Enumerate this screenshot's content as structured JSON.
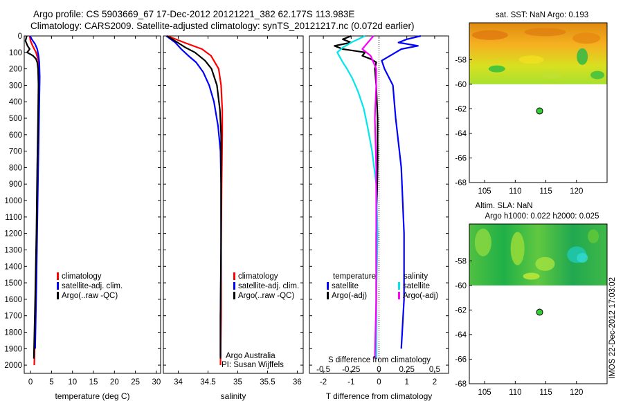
{
  "header": {
    "line1": "Argo profile: CS 5903669_67 17-Dec-2012 20121221_382 62.177S 113.983E",
    "line2": "Climatology: CARS2009. Satellite-adjusted climatology: synTS_20121217.nc (0.072d earlier)"
  },
  "colors": {
    "climatology": "#ff0000",
    "satellite": "#0000ff",
    "argo": "#000000",
    "satellite_salinity": "#00e5ee",
    "argo_salinity": "#ff00ff",
    "map_land_gray": "#ffffff",
    "float_marker": "#33cc33"
  },
  "chart_data": [
    {
      "id": "temperature-profile",
      "type": "line",
      "xlabel": "temperature (deg C)",
      "ylabel": "",
      "xlim": [
        -1.5,
        31
      ],
      "ylim": [
        2050,
        0
      ],
      "x_ticks": [
        0,
        5,
        10,
        15,
        20,
        25,
        30
      ],
      "y_ticks": [
        0,
        100,
        200,
        300,
        400,
        500,
        600,
        700,
        800,
        900,
        1000,
        1100,
        1200,
        1300,
        1400,
        1500,
        1600,
        1700,
        1800,
        1900,
        2000
      ],
      "legend_position": "lower-center",
      "series": [
        {
          "name": "climatology",
          "color_key": "climatology",
          "depth": [
            0,
            30,
            60,
            100,
            150,
            200,
            300,
            500,
            800,
            1200,
            1600,
            2000
          ],
          "values": [
            -0.2,
            0.0,
            0.5,
            1.3,
            1.9,
            2.1,
            2.0,
            1.9,
            1.7,
            1.5,
            1.2,
            0.9
          ]
        },
        {
          "name": "satellite-adj. clim.",
          "color_key": "satellite",
          "depth": [
            0,
            20,
            50,
            80,
            120,
            160,
            250,
            400,
            700,
            1000,
            1500,
            1900
          ],
          "values": [
            -0.1,
            0.3,
            1.1,
            1.6,
            1.9,
            2.1,
            2.2,
            2.1,
            1.9,
            1.7,
            1.4,
            1.1
          ]
        },
        {
          "name": "Argo(..raw -QC)",
          "color_key": "argo",
          "depth": [
            0,
            30,
            60,
            80,
            100,
            120,
            140,
            160,
            200,
            300,
            500,
            800,
            1200,
            1600,
            1960
          ],
          "values": [
            -0.9,
            -1.2,
            -0.7,
            -0.2,
            -0.8,
            0.6,
            1.3,
            1.6,
            1.8,
            1.9,
            1.8,
            1.6,
            1.4,
            1.1,
            0.8
          ]
        }
      ]
    },
    {
      "id": "salinity-profile",
      "type": "line",
      "xlabel": "salinity",
      "ylabel": "",
      "xlim": [
        33.75,
        36.1
      ],
      "ylim": [
        2050,
        0
      ],
      "x_ticks": [
        34,
        34.5,
        35,
        35.5,
        36
      ],
      "legend_position": "lower-right",
      "series": [
        {
          "name": "climatology",
          "color_key": "climatology",
          "depth": [
            0,
            40,
            80,
            120,
            200,
            300,
            450,
            600,
            900,
            1300,
            1700,
            2000
          ],
          "values": [
            33.82,
            34.1,
            34.4,
            34.55,
            34.68,
            34.72,
            34.74,
            34.74,
            34.73,
            34.72,
            34.72,
            34.71
          ]
        },
        {
          "name": "satellite-adj. clim.",
          "color_key": "satellite",
          "depth": [
            0,
            40,
            80,
            120,
            160,
            220,
            300,
            400,
            550,
            700,
            900,
            1300,
            1700,
            1950
          ],
          "values": [
            33.8,
            33.95,
            34.05,
            34.17,
            34.3,
            34.42,
            34.52,
            34.6,
            34.67,
            34.71,
            34.72,
            34.72,
            34.71,
            34.71
          ]
        },
        {
          "name": "Argo(..raw -QC)",
          "color_key": "argo",
          "depth": [
            0,
            40,
            70,
            100,
            150,
            200,
            300,
            450,
            600,
            900,
            1300,
            1700,
            1960
          ],
          "values": [
            33.81,
            33.99,
            34.12,
            34.28,
            34.45,
            34.56,
            34.65,
            34.7,
            34.72,
            34.72,
            34.72,
            34.71,
            34.71
          ]
        }
      ],
      "annotations": [
        "Argo Australia",
        "PI: Susan Wijffels"
      ]
    },
    {
      "id": "difference-profile",
      "type": "line",
      "xlabel": "T difference from climatology",
      "top_axis_label": "S difference from climatology",
      "xlim": [
        -2.5,
        2.5
      ],
      "x_ticks": [
        -2,
        -1,
        0,
        1,
        2
      ],
      "top_ticks": [
        "-0.5",
        "-0.25",
        "0",
        "0.25",
        "0.5"
      ],
      "top_tick_positions": [
        -2,
        -1,
        0,
        1,
        2
      ],
      "ylim": [
        2050,
        0
      ],
      "legend": {
        "temperature_title": "temperature",
        "salinity_title": "salinity",
        "temperature_entries": [
          "satellite",
          "Argo(-adj)"
        ],
        "salinity_entries": [
          "satellite",
          "Argo(-adj)"
        ]
      },
      "series": [
        {
          "name": "satellite",
          "group": "temperature",
          "color_key": "satellite",
          "depth": [
            0,
            20,
            40,
            60,
            80,
            100,
            150,
            200,
            300,
            500,
            800,
            1200,
            1600,
            1900
          ],
          "values": [
            1.5,
            1.0,
            0.7,
            1.4,
            0.8,
            0.6,
            0.1,
            0.2,
            0.5,
            0.6,
            0.8,
            0.9,
            0.9,
            0.8
          ]
        },
        {
          "name": "Argo(-adj)",
          "group": "temperature",
          "color_key": "argo",
          "depth": [
            0,
            20,
            40,
            60,
            80,
            100,
            120,
            140,
            160,
            200,
            300,
            500,
            800,
            1200,
            1600,
            1960
          ],
          "values": [
            -1.0,
            -1.3,
            -1.0,
            -1.6,
            -1.3,
            -0.5,
            -0.6,
            -0.3,
            -0.1,
            -0.15,
            -0.1,
            -0.05,
            -0.05,
            -0.1,
            -0.1,
            -0.1
          ]
        },
        {
          "name": "satellite",
          "group": "salinity",
          "color_key": "satellite_salinity",
          "depth": [
            0,
            40,
            70,
            100,
            130,
            160,
            200,
            260,
            340,
            440,
            560,
            700,
            900,
            1200,
            1600,
            1960
          ],
          "values": [
            -0.5,
            -1.0,
            -1.3,
            -1.5,
            -1.4,
            -1.3,
            -1.15,
            -0.95,
            -0.75,
            -0.55,
            -0.4,
            -0.25,
            -0.1,
            -0.05,
            -0.1,
            -0.1
          ]
        },
        {
          "name": "Argo(-adj)",
          "group": "salinity",
          "color_key": "argo_salinity",
          "depth": [
            0,
            40,
            80,
            120,
            200,
            300,
            500,
            800,
            1200,
            1600,
            1960
          ],
          "values": [
            -0.2,
            -0.4,
            -0.6,
            -0.3,
            -0.1,
            -0.1,
            -0.15,
            -0.1,
            -0.1,
            -0.1,
            -0.15
          ]
        }
      ]
    },
    {
      "id": "sst-map",
      "type": "heatmap",
      "title": "sat. SST: NaN Argo: 0.193",
      "xlim": [
        102.5,
        125
      ],
      "ylim": [
        -68,
        -55
      ],
      "x_ticks": [
        105,
        110,
        115,
        120
      ],
      "y_ticks": [
        -58,
        -60,
        -62,
        -64,
        -66,
        -68
      ],
      "data_extent_lat": [
        -60,
        -55
      ],
      "float_position": {
        "lon": 113.983,
        "lat": -62.177
      }
    },
    {
      "id": "sla-map",
      "type": "heatmap",
      "title": "Altim. SLA: NaN",
      "subtitle": "Argo h1000: 0.022 h2000: 0.025",
      "xlim": [
        102.5,
        125
      ],
      "ylim": [
        -68,
        -55
      ],
      "x_ticks": [
        105,
        110,
        115,
        120
      ],
      "y_ticks": [
        -58,
        -60,
        -62,
        -64,
        -66,
        -68
      ],
      "data_extent_lat": [
        -60,
        -55
      ],
      "float_position": {
        "lon": 113.983,
        "lat": -62.177
      }
    }
  ],
  "footer": {
    "side_text": "IMOS 22-Dec-2012 17:03:02"
  }
}
